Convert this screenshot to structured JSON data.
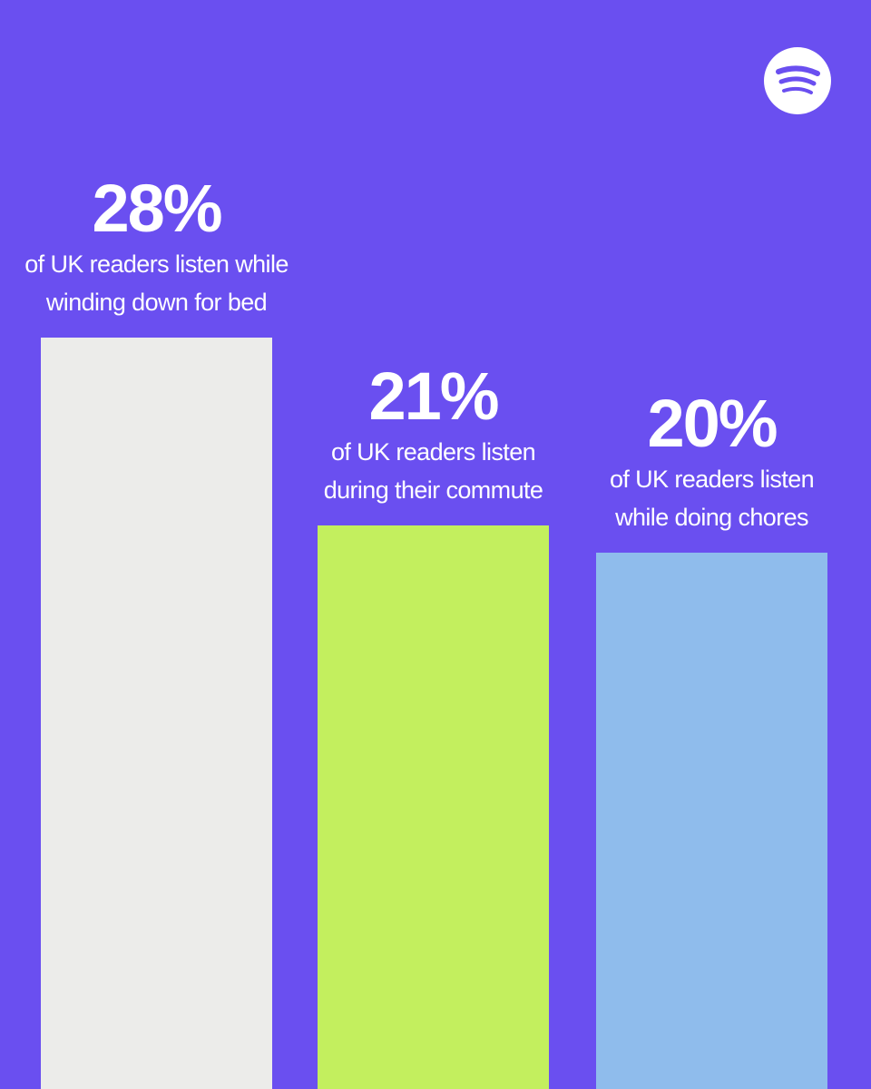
{
  "chart_data": {
    "type": "bar",
    "categories": [
      [
        "of UK readers listen while",
        "winding down for bed"
      ],
      [
        "of UK readers listen",
        "during their commute"
      ],
      [
        "of UK readers listen",
        "while doing chores"
      ]
    ],
    "values": [
      28,
      21,
      20
    ],
    "value_labels": [
      "28%",
      "21%",
      "20%"
    ],
    "colors": [
      "#ececea",
      "#c3ef5e",
      "#8fbcec"
    ],
    "background": "#6a4ff0"
  }
}
